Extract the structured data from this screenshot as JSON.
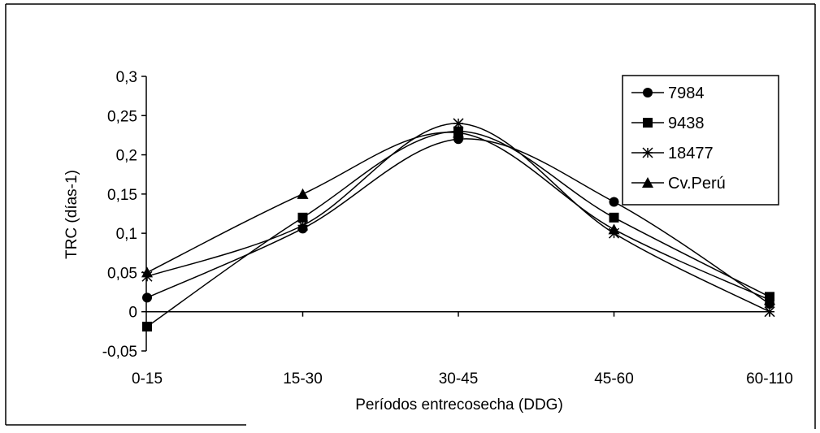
{
  "chart_data": {
    "type": "line",
    "title": "",
    "xlabel": "Períodos entrecosecha (DDG)",
    "ylabel": "TRC (días-1)",
    "categories": [
      "0-15",
      "15-30",
      "30-45",
      "45-60",
      "60-110"
    ],
    "ylim": [
      -0.05,
      0.3
    ],
    "yticks": [
      -0.05,
      0,
      0.05,
      0.1,
      0.15,
      0.2,
      0.25,
      0.3
    ],
    "ytick_labels": [
      "-0,05",
      "0",
      "0,05",
      "0,1",
      "0,15",
      "0,2",
      "0,25",
      "0,3"
    ],
    "grid": false,
    "legend_position": "top-right",
    "series": [
      {
        "name": "7984",
        "marker": "circle",
        "values": [
          0.018,
          0.106,
          0.22,
          0.14,
          0.01
        ]
      },
      {
        "name": "9438",
        "marker": "square",
        "values": [
          -0.019,
          0.12,
          0.23,
          0.12,
          0.019
        ]
      },
      {
        "name": "18477",
        "marker": "asterisk",
        "values": [
          0.045,
          0.11,
          0.24,
          0.1,
          0.0
        ]
      },
      {
        "name": "Cv.Perú",
        "marker": "triangle",
        "values": [
          0.05,
          0.15,
          0.228,
          0.105,
          0.015
        ]
      }
    ],
    "line_color": "#000000"
  }
}
